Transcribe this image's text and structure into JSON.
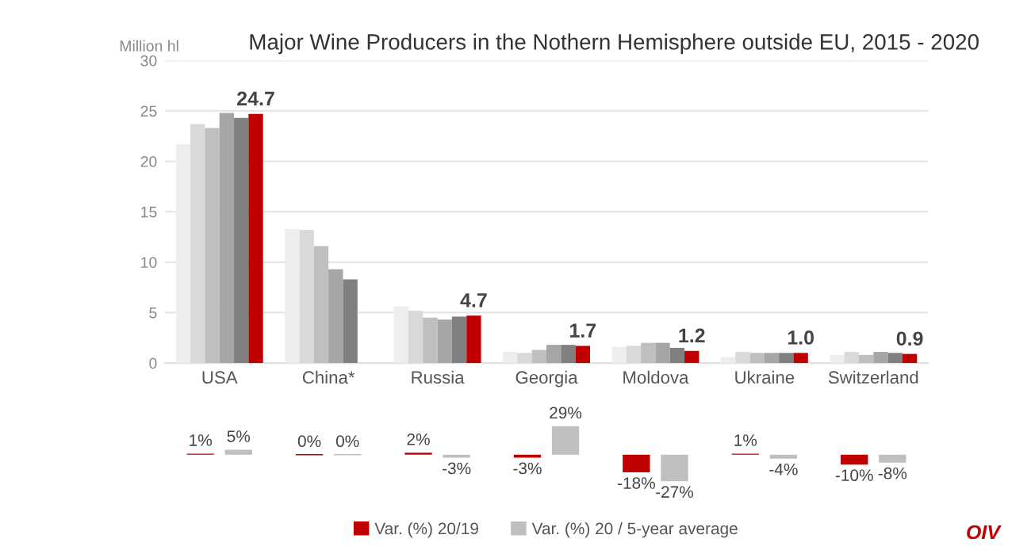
{
  "chart_data": [
    {
      "type": "bar",
      "title": "Major Wine Producers in the Nothern Hemisphere outside EU, 2015 - 2020",
      "ylabel": "Million hl",
      "categories": [
        "USA",
        "China*",
        "Russia",
        "Georgia",
        "Moldova",
        "Ukraine",
        "Switzerland"
      ],
      "series": [
        {
          "color": "#eeeeee",
          "values": [
            21.7,
            13.3,
            5.6,
            1.1,
            1.6,
            0.6,
            0.8
          ]
        },
        {
          "color": "#d9d9d9",
          "values": [
            23.7,
            13.2,
            5.2,
            1.0,
            1.7,
            1.1,
            1.1
          ]
        },
        {
          "color": "#bfbfbf",
          "values": [
            23.3,
            11.6,
            4.5,
            1.3,
            2.0,
            1.0,
            0.8
          ]
        },
        {
          "color": "#a6a6a6",
          "values": [
            24.8,
            9.3,
            4.3,
            1.8,
            2.0,
            1.0,
            1.1
          ]
        },
        {
          "color": "#808080",
          "values": [
            24.3,
            8.3,
            4.6,
            1.8,
            1.5,
            1.0,
            1.0
          ]
        },
        {
          "color": "#c00000",
          "values": [
            24.7,
            null,
            4.7,
            1.7,
            1.2,
            1.0,
            0.9
          ],
          "value_labels": [
            "24.7",
            null,
            "4.7",
            "1.7",
            "1.2",
            "1.0",
            "0.9"
          ]
        }
      ],
      "ylim": [
        0,
        30
      ],
      "yticks": [
        0,
        5,
        10,
        15,
        20,
        25,
        30
      ],
      "grid": "y"
    },
    {
      "type": "bar",
      "categories": [
        null,
        null,
        null,
        null,
        null,
        null,
        null
      ],
      "series": [
        {
          "name": "Var. (%) 20/19",
          "color": "#c00000",
          "values": [
            1,
            0,
            2,
            -3,
            -18,
            1,
            -10
          ],
          "value_labels": [
            "1%",
            "0%",
            "2%",
            "-3%",
            "-18%",
            "1%",
            "-10%"
          ]
        },
        {
          "name": "Var. (%) 20 / 5-year average",
          "color": "#bfbfbf",
          "values": [
            5,
            0,
            -3,
            29,
            -27,
            -4,
            -8
          ],
          "value_labels": [
            "5%",
            "0%",
            "-3%",
            "29%",
            "-27%",
            "-4%",
            "-8%"
          ]
        }
      ],
      "tick_labels": false,
      "legend": "bottom",
      "annotations": [
        "OIV"
      ]
    }
  ]
}
